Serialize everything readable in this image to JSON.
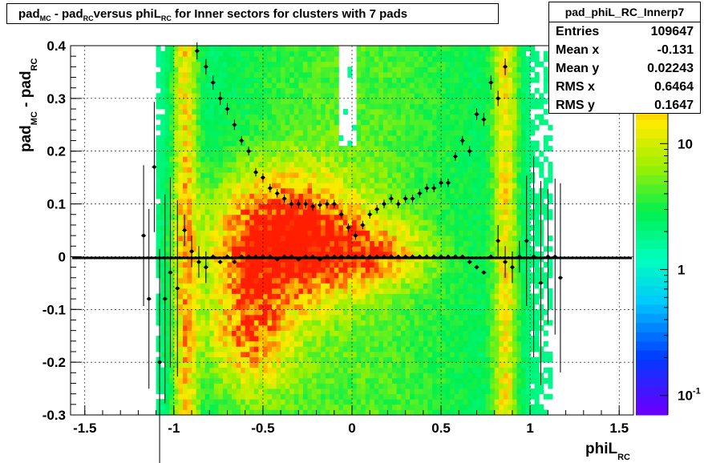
{
  "title": {
    "text": "pad_{MC} - pad_{RC} versus phiL_{RC} for Inner sectors for clusters with 7 pads",
    "parts": [
      "pad",
      "MC",
      " - pad",
      "RC",
      "versus phiL",
      "RC",
      " for Inner sectors for clusters with 7 pads"
    ]
  },
  "stats": {
    "name": "pad_phiL_RC_Innerp7",
    "rows": [
      {
        "label": "Entries",
        "value": "109647"
      },
      {
        "label": "Mean x",
        "value": "-0.131"
      },
      {
        "label": "Mean y",
        "value": "0.02243"
      },
      {
        "label": "RMS x",
        "value": "0.6464"
      },
      {
        "label": "RMS y",
        "value": "0.1647"
      }
    ]
  },
  "axes": {
    "x_label": "phiL",
    "x_label_sub": "RC",
    "y_label": "pad",
    "y_label_sub1": "MC",
    "y_label_mid": " - pad",
    "y_label_sub2": "RC",
    "x_ticks": [
      "-1.5",
      "-1",
      "-0.5",
      "0",
      "0.5",
      "1",
      "1.5"
    ],
    "y_ticks": [
      "-0.3",
      "-0.2",
      "-0.1",
      "0",
      "0.1",
      "0.2",
      "0.3",
      "0.4"
    ],
    "z_ticks": [
      "10",
      "1",
      "10"
    ],
    "z_tick_exp": "-1"
  },
  "chart_data": {
    "type": "heatmap",
    "xlim": [
      -1.58,
      1.58
    ],
    "ylim": [
      -0.3,
      0.4
    ],
    "zscale": "log",
    "zlim": [
      0.07,
      60
    ],
    "grid": true,
    "colors": {
      "low": "#6600ff",
      "mid": "#00ff80",
      "high": "#ff2200"
    },
    "profile_upper": {
      "x": [
        -0.87,
        -0.82,
        -0.78,
        -0.74,
        -0.7,
        -0.66,
        -0.62,
        -0.58,
        -0.54,
        -0.5,
        -0.46,
        -0.42,
        -0.38,
        -0.34,
        -0.3,
        -0.26,
        -0.22,
        -0.18,
        -0.14,
        -0.1,
        -0.06,
        -0.02,
        0.02,
        0.06,
        0.1,
        0.14,
        0.18,
        0.22,
        0.26,
        0.3,
        0.34,
        0.38,
        0.42,
        0.46,
        0.5,
        0.54,
        0.58,
        0.62,
        0.66,
        0.7,
        0.74,
        0.78,
        0.82,
        0.86
      ],
      "y": [
        0.39,
        0.36,
        0.33,
        0.3,
        0.28,
        0.25,
        0.22,
        0.2,
        0.16,
        0.15,
        0.13,
        0.12,
        0.11,
        0.1,
        0.1,
        0.1,
        0.095,
        0.098,
        0.1,
        0.1,
        0.08,
        0.055,
        0.04,
        0.06,
        0.08,
        0.09,
        0.1,
        0.11,
        0.1,
        0.11,
        0.11,
        0.12,
        0.13,
        0.13,
        0.14,
        0.14,
        0.19,
        0.22,
        0.2,
        0.27,
        0.26,
        0.33,
        0.3,
        0.36
      ]
    },
    "profile_center": {
      "x": [
        -1.17,
        -1.14,
        -1.11,
        -1.08,
        -1.05,
        -1.02,
        -0.98,
        -0.94,
        -0.9,
        -0.86,
        -0.82,
        -0.78,
        -0.74,
        -0.7,
        -0.66,
        -0.62,
        -0.58,
        -0.54,
        -0.5,
        -0.46,
        -0.42,
        -0.38,
        -0.34,
        -0.3,
        -0.26,
        -0.22,
        -0.18,
        -0.14,
        -0.1,
        -0.06,
        -0.02,
        0.02,
        0.06,
        0.1,
        0.14,
        0.18,
        0.22,
        0.26,
        0.3,
        0.34,
        0.38,
        0.42,
        0.46,
        0.5,
        0.54,
        0.58,
        0.62,
        0.66,
        0.7,
        0.74,
        0.78,
        0.82,
        0.86,
        0.9,
        0.94,
        0.98,
        1.02,
        1.06,
        1.1,
        1.14,
        1.17
      ],
      "y": [
        0.04,
        -0.08,
        0.17,
        -0.2,
        -0.08,
        -0.03,
        -0.06,
        0.05,
        0.01,
        -0.01,
        -0.02,
        0.0,
        -0.01,
        0.0,
        -0.01,
        0.0,
        0.0,
        0.0,
        0.0,
        0.0,
        -0.005,
        0.0,
        0.0,
        -0.005,
        0.0,
        0.0,
        -0.005,
        0.0,
        0.0,
        0.0,
        0.0,
        0.0,
        0.0,
        0.0,
        0.0,
        0.0,
        0.0,
        0.0,
        0.0,
        0.0,
        0.0,
        0.0,
        0.0,
        0.0,
        0.0,
        0.0,
        0.0,
        -0.01,
        -0.02,
        -0.03,
        0.0,
        0.03,
        -0.01,
        -0.02,
        0.0,
        0.03,
        0.0,
        -0.05,
        0.0,
        0.0,
        -0.04
      ]
    }
  }
}
